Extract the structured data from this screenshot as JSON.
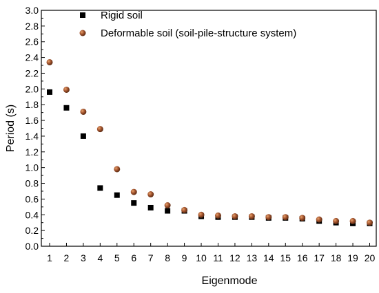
{
  "chart_data": {
    "type": "scatter",
    "title": "",
    "xlabel": "Eigenmode",
    "ylabel": "Period (s)",
    "xlim": [
      1,
      20
    ],
    "ylim": [
      0.0,
      3.0
    ],
    "x_ticks": [
      1,
      2,
      3,
      4,
      5,
      6,
      7,
      8,
      9,
      10,
      11,
      12,
      13,
      14,
      15,
      16,
      17,
      18,
      19,
      20
    ],
    "y_ticks": [
      "0.0",
      "0.2",
      "0.4",
      "0.6",
      "0.8",
      "1.0",
      "1.2",
      "1.4",
      "1.6",
      "1.8",
      "2.0",
      "2.2",
      "2.4",
      "2.6",
      "2.8",
      "3.0"
    ],
    "grid": false,
    "legend_position": "top-right",
    "series": [
      {
        "name": "Rigid soil",
        "marker": "square",
        "color": "#000000",
        "x": [
          1,
          2,
          3,
          4,
          5,
          6,
          7,
          8,
          9,
          10,
          11,
          12,
          13,
          14,
          15,
          16,
          17,
          18,
          19,
          20
        ],
        "values": [
          1.96,
          1.76,
          1.4,
          0.74,
          0.65,
          0.55,
          0.49,
          0.45,
          0.45,
          0.38,
          0.37,
          0.37,
          0.37,
          0.36,
          0.36,
          0.35,
          0.32,
          0.3,
          0.29,
          0.29
        ]
      },
      {
        "name": "Deformable soil (soil-pile-structure system)",
        "marker": "circle",
        "color": "#a0522d",
        "x": [
          1,
          2,
          3,
          4,
          5,
          6,
          7,
          8,
          9,
          10,
          11,
          12,
          13,
          14,
          15,
          16,
          17,
          18,
          19,
          20
        ],
        "values": [
          2.34,
          1.99,
          1.71,
          1.49,
          0.98,
          0.69,
          0.66,
          0.52,
          0.46,
          0.4,
          0.39,
          0.38,
          0.38,
          0.37,
          0.37,
          0.36,
          0.34,
          0.32,
          0.32,
          0.3
        ]
      }
    ]
  }
}
